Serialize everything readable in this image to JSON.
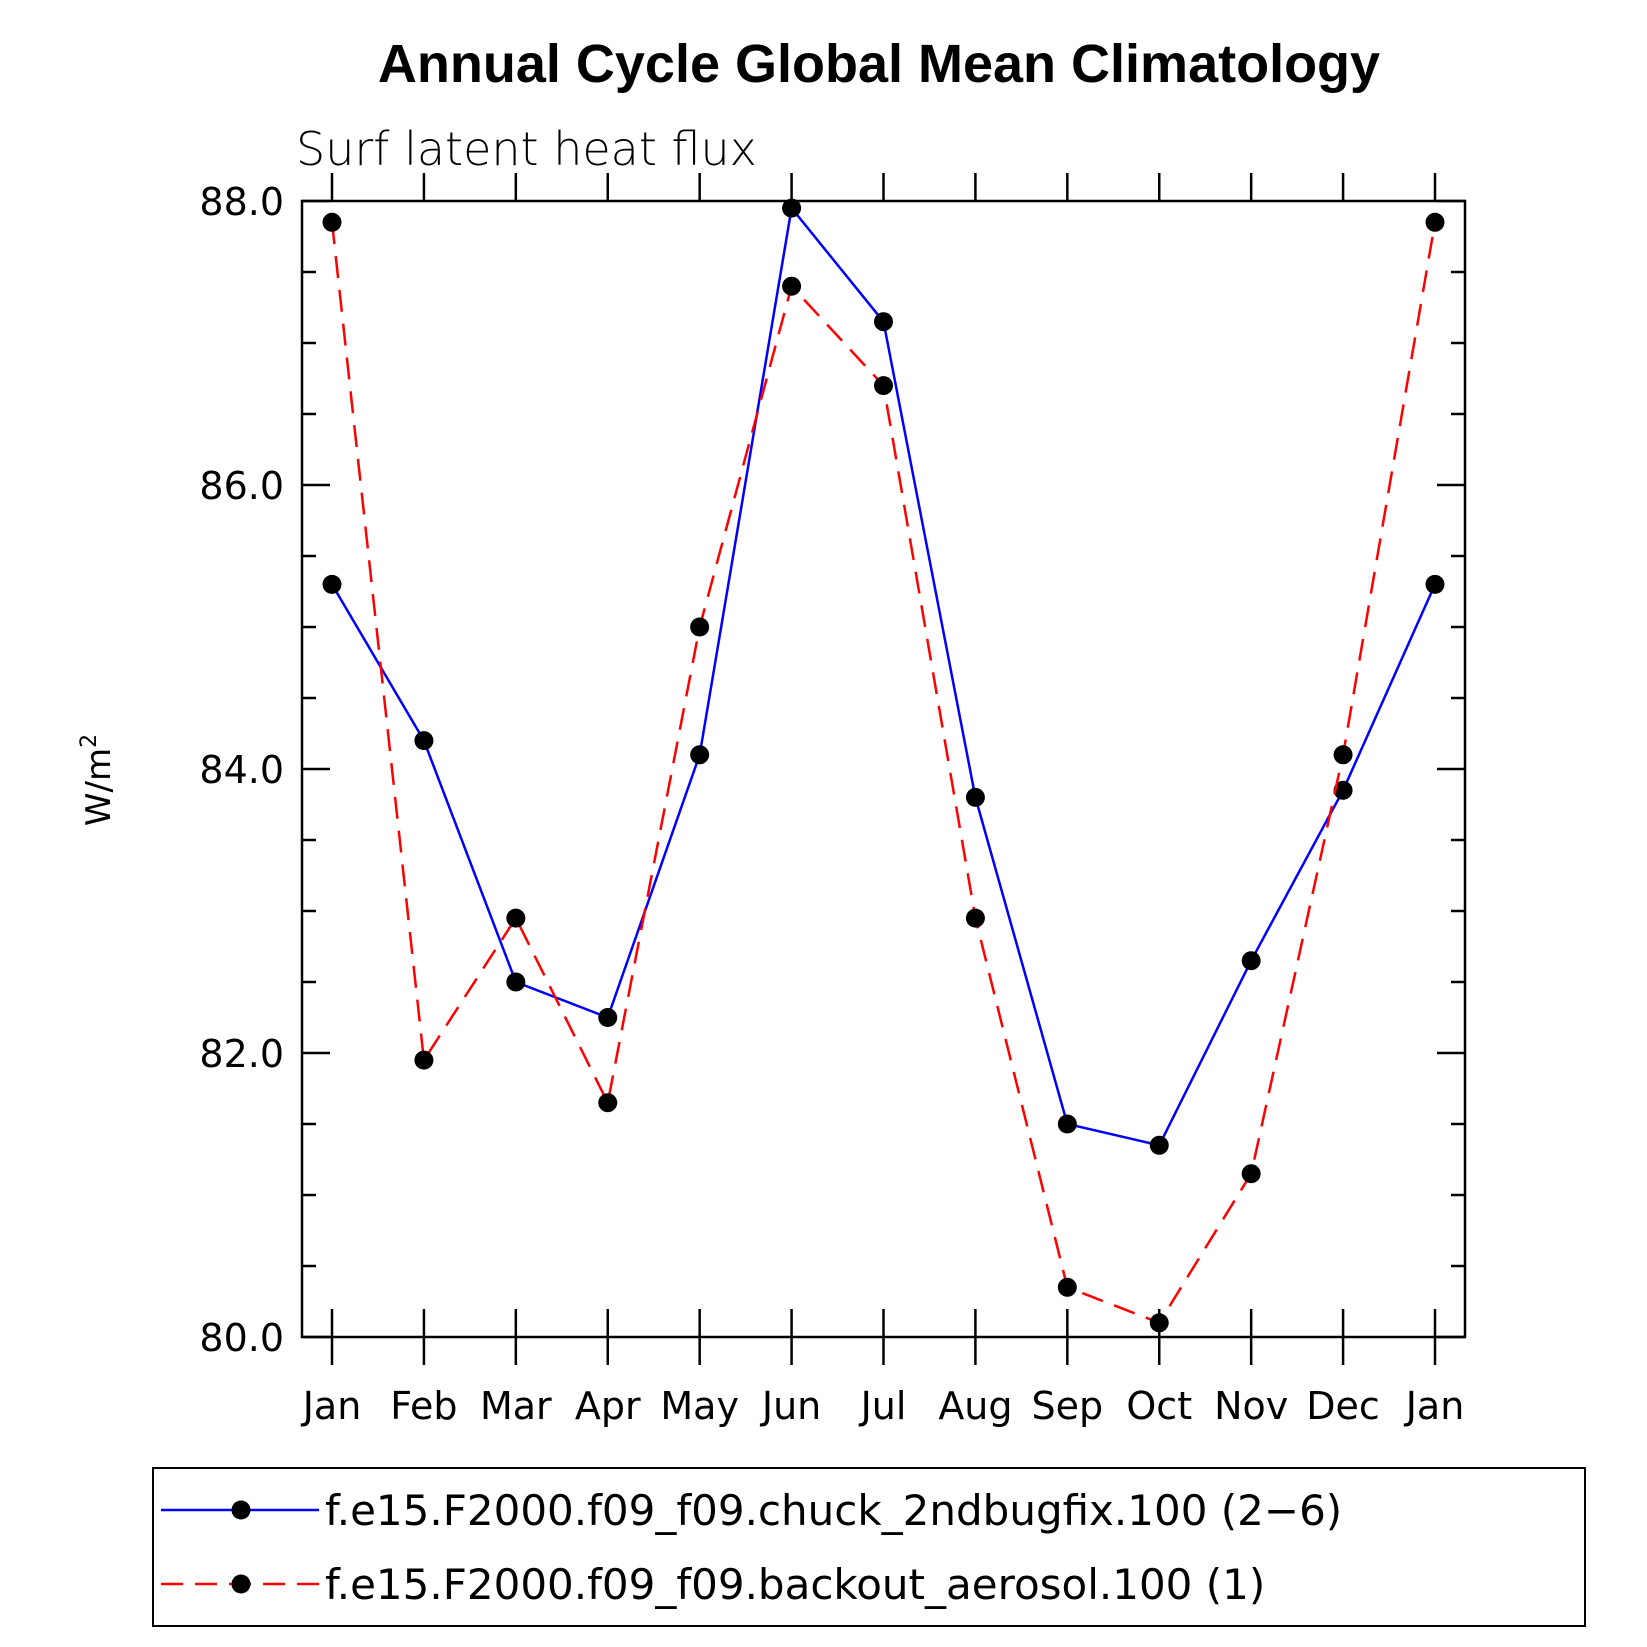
{
  "chart_data": {
    "type": "line",
    "title": "Annual Cycle Global Mean Climatology",
    "subtitle": "Surf latent heat flux",
    "ylabel": "W/m",
    "ylabel_sup": "2",
    "xlabel": "",
    "categories": [
      "Jan",
      "Feb",
      "Mar",
      "Apr",
      "May",
      "Jun",
      "Jul",
      "Aug",
      "Sep",
      "Oct",
      "Nov",
      "Dec",
      "Jan"
    ],
    "ylim": [
      80,
      88
    ],
    "yticks": [
      "80.0",
      "82.0",
      "84.0",
      "86.0",
      "88.0"
    ],
    "grid": false,
    "legend_position": "bottom",
    "series": [
      {
        "name": "f.e15.F2000.f09_f09.chuck_2ndbugfix.100 (2−6)",
        "color": "#0000ff",
        "dash": "solid",
        "values": [
          85.3,
          84.2,
          82.5,
          82.25,
          84.1,
          87.95,
          87.15,
          83.8,
          81.5,
          81.35,
          82.65,
          83.85,
          85.3
        ]
      },
      {
        "name": "f.e15.F2000.f09_f09.backout_aerosol.100 (1)",
        "color": "#ff0000",
        "dash": "dashed",
        "values": [
          87.85,
          81.95,
          82.95,
          81.65,
          85.0,
          87.4,
          86.7,
          82.95,
          80.35,
          80.1,
          81.15,
          84.1,
          87.85
        ]
      }
    ]
  }
}
